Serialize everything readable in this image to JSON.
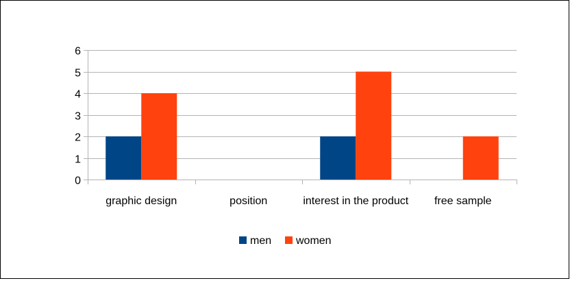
{
  "chart_data": {
    "type": "bar",
    "categories": [
      "graphic design",
      "position",
      "interest in the product",
      "free sample"
    ],
    "series": [
      {
        "name": "men",
        "values": [
          2,
          0,
          2,
          0
        ],
        "color": "#004586"
      },
      {
        "name": "women",
        "values": [
          4,
          0,
          5,
          2
        ],
        "color": "#ff420e"
      }
    ],
    "ylim": [
      0,
      6
    ],
    "yticks": [
      "0",
      "1",
      "2",
      "3",
      "4",
      "5",
      "6"
    ],
    "grid": true,
    "legend_position": "bottom"
  }
}
